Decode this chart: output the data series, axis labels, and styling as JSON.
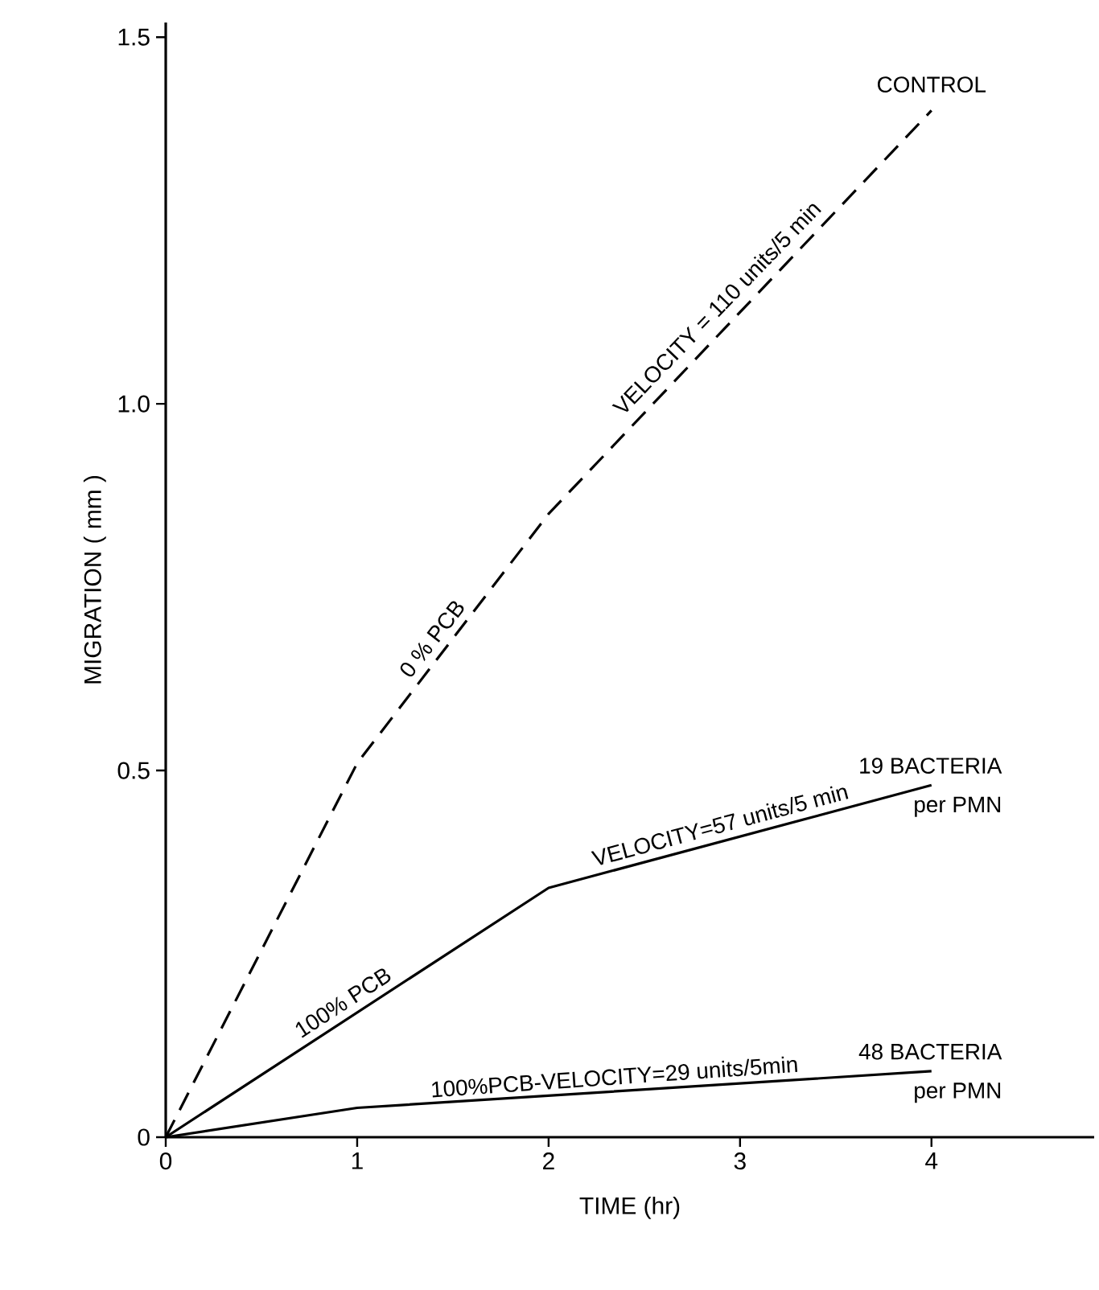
{
  "chart_data": {
    "type": "line",
    "xlabel": "TIME  (hr)",
    "ylabel": "MIGRATION    ( mm )",
    "x": [
      0,
      1,
      2,
      4
    ],
    "series": [
      {
        "color": "#000000",
        "line_style": "dashed",
        "values": [
          0,
          0.51,
          0.85,
          1.4
        ]
      },
      {
        "color": "#000000",
        "line_style": "solid",
        "values": [
          0,
          null,
          0.34,
          0.48
        ]
      },
      {
        "color": "#000000",
        "line_style": "solid",
        "values": [
          0,
          0.04,
          null,
          0.09
        ]
      }
    ],
    "xlim": [
      0,
      4.85
    ],
    "ylim": [
      0,
      1.52
    ],
    "xticks": [
      0,
      1,
      2,
      3,
      4
    ],
    "yticks": [
      0,
      0.5,
      {
        "value": 1,
        "label": "1.0"
      },
      1.5
    ],
    "marker": "none",
    "annotations": [
      {
        "text": "CONTROL",
        "x": 4,
        "y": 1.4
      },
      {
        "text": "0 % PCB",
        "x": 1.5,
        "y": 0.68
      },
      {
        "text": "VELOCITY = 110 units/5 min",
        "x": 3,
        "y": 1.125
      },
      {
        "text": "19 BACTERIA",
        "x": 4,
        "y": 0.48
      },
      {
        "text": "per PMN",
        "x": 4,
        "y": 0.48
      },
      {
        "text": "100% PCB",
        "x": 1,
        "y": 0.17
      },
      {
        "text": "VELOCITY=57 units/5 min",
        "x": 3,
        "y": 0.41
      },
      {
        "text": "100%PCB-VELOCITY=29 units/5min",
        "x": 2.5,
        "y": 0.065
      },
      {
        "text": "48 BACTERIA",
        "x": 4,
        "y": 0.09
      },
      {
        "text": "per PMN",
        "x": 4,
        "y": 0.09
      }
    ]
  }
}
